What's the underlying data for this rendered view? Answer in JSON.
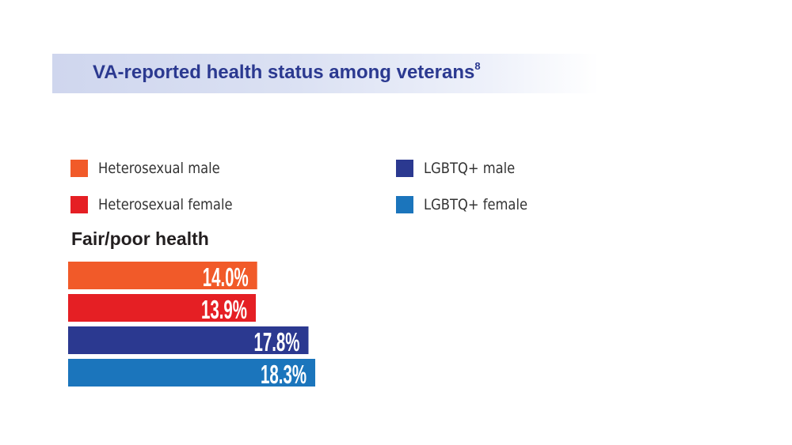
{
  "title": {
    "text": "VA-reported health status among veterans",
    "superscript": "8"
  },
  "legend": [
    {
      "label": "Heterosexual male",
      "color": "#f15a29"
    },
    {
      "label": "Heterosexual female",
      "color": "#e51f24"
    },
    {
      "label": "LGBTQ+ male",
      "color": "#2b3990"
    },
    {
      "label": "LGBTQ+ female",
      "color": "#1b75bc"
    }
  ],
  "chart_data": {
    "type": "bar",
    "orientation": "horizontal",
    "title": "Fair/poor health",
    "categories": [
      "Heterosexual male",
      "Heterosexual female",
      "LGBTQ+ male",
      "LGBTQ+ female"
    ],
    "values": [
      14.0,
      13.9,
      17.8,
      18.3
    ],
    "value_labels": [
      "14.0%",
      "13.9%",
      "17.8%",
      "18.3%"
    ],
    "colors": [
      "#f15a29",
      "#e51f24",
      "#2b3990",
      "#1b75bc"
    ],
    "unit": "%",
    "grid": false,
    "legend_position": "top"
  }
}
